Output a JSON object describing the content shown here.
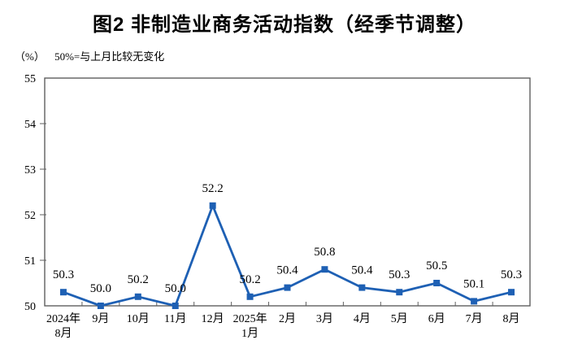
{
  "page": {
    "background_color": "#FFFFFF"
  },
  "chart_data": {
    "type": "line",
    "title": "图2 非制造业商务活动指数（经季节调整）",
    "unit_label": "（%）",
    "note": "50%=与上月比较无变化",
    "categories": [
      "2024年\n8月",
      "9月",
      "10月",
      "11月",
      "12月",
      "2025年\n1月",
      "2月",
      "3月",
      "4月",
      "5月",
      "6月",
      "7月",
      "8月"
    ],
    "values": [
      50.3,
      50.0,
      50.2,
      50.0,
      52.2,
      50.2,
      50.4,
      50.8,
      50.4,
      50.3,
      50.5,
      50.1,
      50.3
    ],
    "data_labels": [
      "50.3",
      "50.0",
      "50.2",
      "50.0",
      "52.2",
      "50.2",
      "50.4",
      "50.8",
      "50.4",
      "50.3",
      "50.5",
      "50.1",
      "50.3"
    ],
    "ylim": [
      50,
      55
    ],
    "yticks": [
      50,
      51,
      52,
      53,
      54,
      55
    ],
    "grid": false,
    "legend": "none",
    "marker": "square",
    "line_color": "#1E60B4",
    "axis_color": "#5F5F5F",
    "label_color": "#000000"
  }
}
